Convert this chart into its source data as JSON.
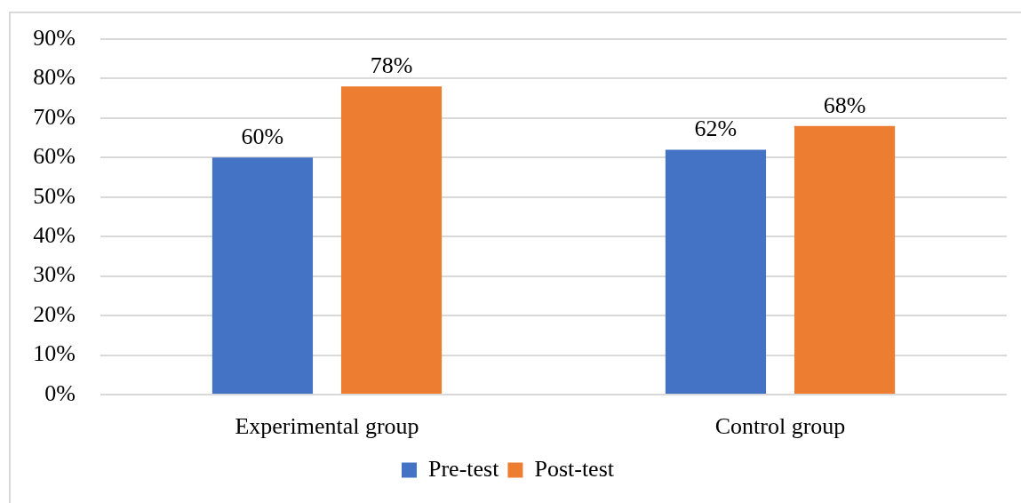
{
  "chart_data": {
    "type": "bar",
    "categories": [
      "Experimental group",
      "Control group"
    ],
    "series": [
      {
        "name": "Pre-test",
        "color": "#4472c4",
        "values": [
          60,
          62
        ],
        "value_labels": [
          "60%",
          "62%"
        ]
      },
      {
        "name": "Post-test",
        "color": "#ed7d31",
        "values": [
          78,
          68
        ],
        "value_labels": [
          "78%",
          "68%"
        ]
      }
    ],
    "ylim": [
      0,
      90
    ],
    "yticks": [
      {
        "value": 0,
        "label": "0%"
      },
      {
        "value": 10,
        "label": "10%"
      },
      {
        "value": 20,
        "label": "20%"
      },
      {
        "value": 30,
        "label": "30%"
      },
      {
        "value": 40,
        "label": "40%"
      },
      {
        "value": 50,
        "label": "50%"
      },
      {
        "value": 60,
        "label": "60%"
      },
      {
        "value": 70,
        "label": "70%"
      },
      {
        "value": 80,
        "label": "80%"
      },
      {
        "value": 90,
        "label": "90%"
      }
    ],
    "grid": "y",
    "legend": "bottom"
  }
}
